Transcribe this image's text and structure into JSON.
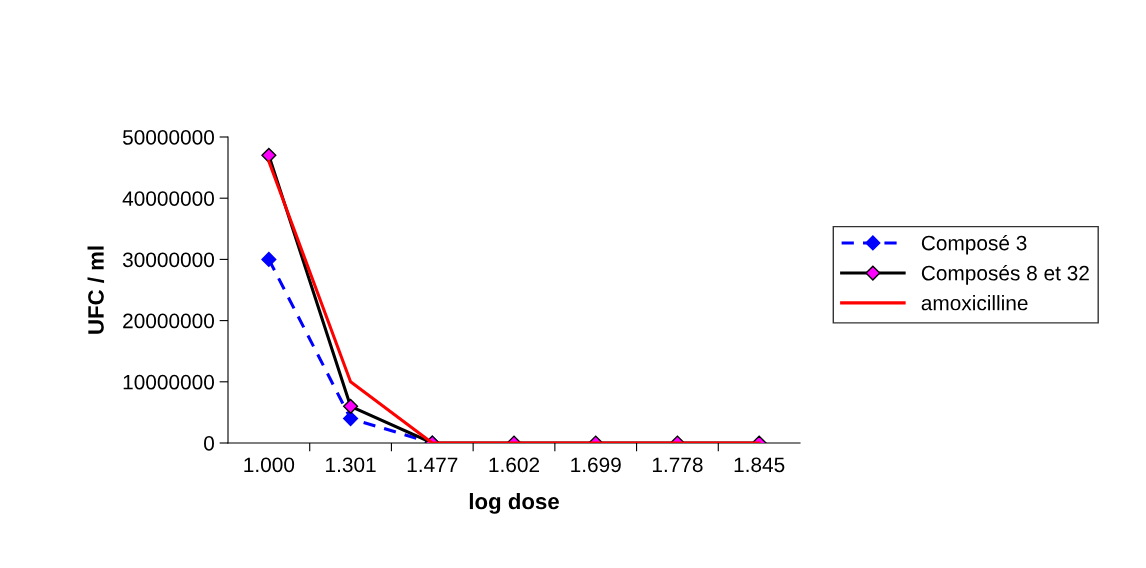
{
  "chart_data": {
    "type": "line",
    "xlabel": "log dose",
    "ylabel": "UFC / ml",
    "categories": [
      "1.000",
      "1.301",
      "1.477",
      "1.602",
      "1.699",
      "1.778",
      "1.845"
    ],
    "ylim": [
      0,
      50000000
    ],
    "yticks": [
      0,
      10000000,
      20000000,
      30000000,
      40000000,
      50000000
    ],
    "legend": "right",
    "grid": false,
    "series": [
      {
        "name": "Composé 3",
        "color": "#0000ff",
        "marker": "diamond",
        "line_style": "dashed",
        "values": [
          30000000,
          4000000,
          0,
          null,
          null,
          null,
          null
        ]
      },
      {
        "name": "Composés 8 et 32",
        "color": "#000000",
        "marker": "diamond",
        "line_style": "solid",
        "values": [
          47000000,
          6000000,
          0,
          0,
          0,
          0,
          0
        ]
      },
      {
        "name": "amoxicilline",
        "color": "#ff0000",
        "marker": "none",
        "line_style": "solid",
        "values": [
          46000000,
          10000000,
          0,
          0,
          0,
          0,
          0
        ]
      }
    ]
  }
}
